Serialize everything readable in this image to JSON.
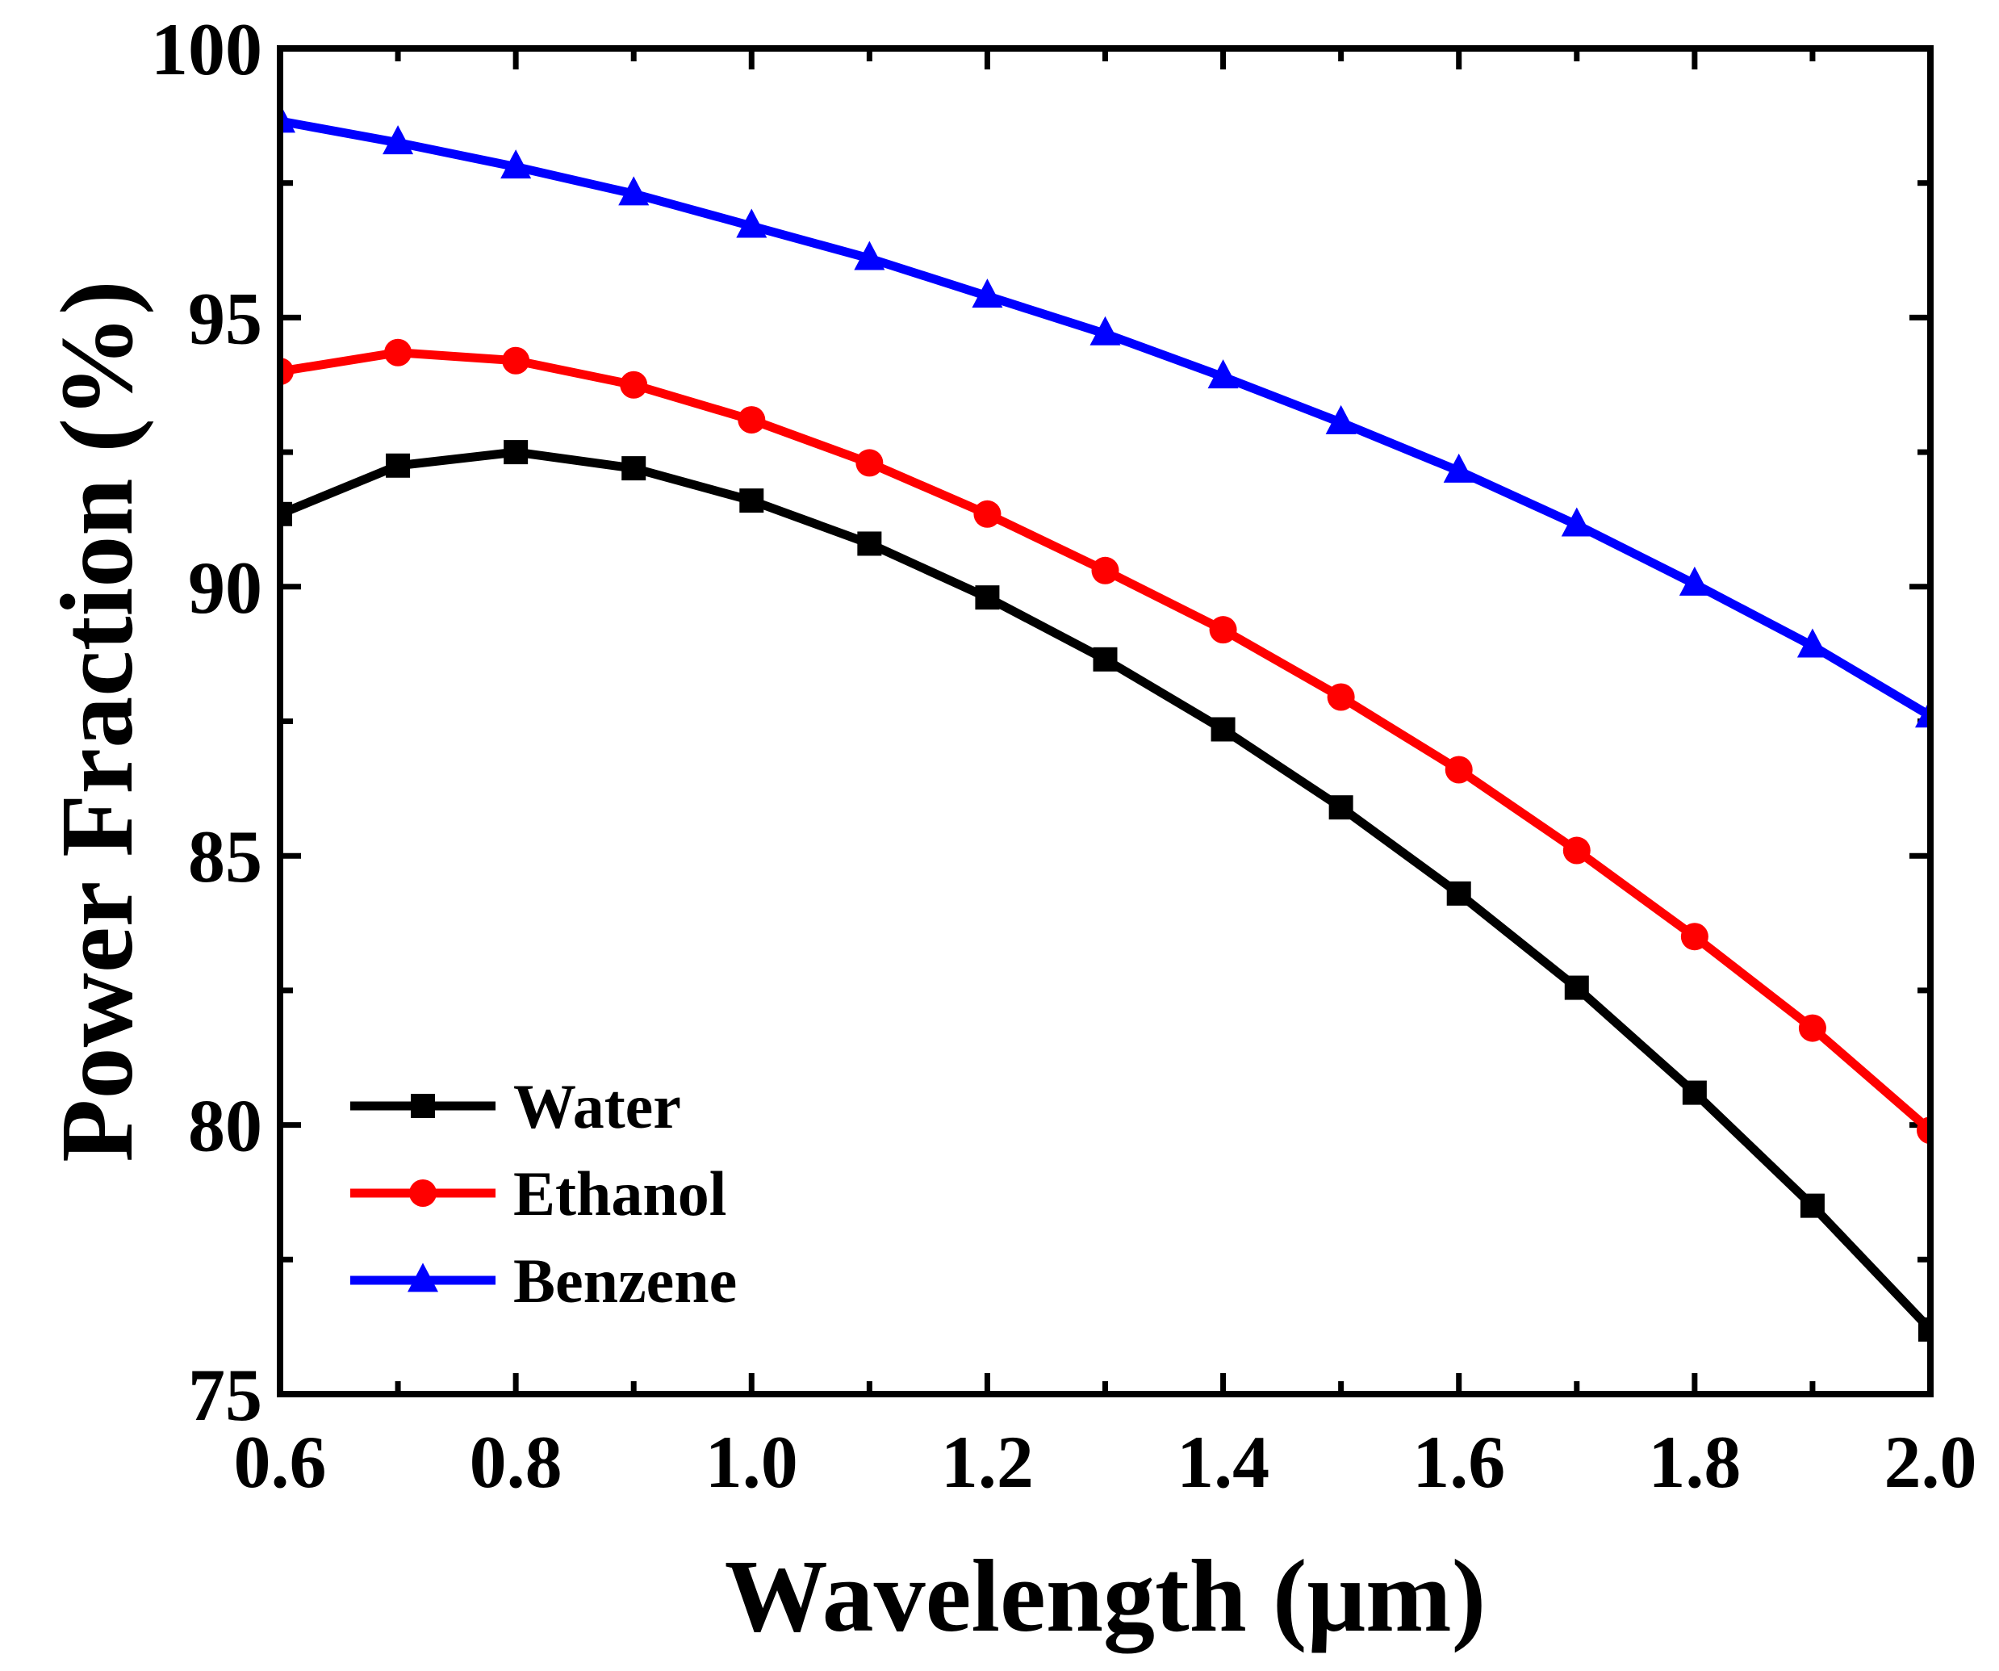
{
  "chart_data": {
    "type": "line",
    "title": "",
    "xlabel": "Wavelength (μm)",
    "ylabel": "Power Fraction (%)",
    "xlim": [
      0.6,
      2.0
    ],
    "ylim": [
      75,
      100
    ],
    "xticks": [
      0.6,
      0.8,
      1.0,
      1.2,
      1.4,
      1.6,
      1.8,
      2.0
    ],
    "xtick_labels": [
      "0.6",
      "0.8",
      "1.0",
      "1.2",
      "1.4",
      "1.6",
      "1.8",
      "2.0"
    ],
    "yticks": [
      75,
      80,
      85,
      90,
      95,
      100
    ],
    "ytick_labels": [
      "75",
      "80",
      "85",
      "90",
      "95",
      "100"
    ],
    "grid": false,
    "legend_position": "bottom-left",
    "x": [
      0.6,
      0.7,
      0.8,
      0.9,
      1.0,
      1.1,
      1.2,
      1.3,
      1.4,
      1.5,
      1.6,
      1.7,
      1.8,
      1.9,
      2.0
    ],
    "series": [
      {
        "name": "Water",
        "color": "#000000",
        "marker": "square",
        "values": [
          91.35,
          92.25,
          92.5,
          92.2,
          91.6,
          90.8,
          89.8,
          88.65,
          87.35,
          85.9,
          84.3,
          82.55,
          80.6,
          78.5,
          76.2
        ]
      },
      {
        "name": "Ethanol",
        "color": "#ff0000",
        "marker": "circle",
        "values": [
          94.0,
          94.35,
          94.2,
          93.75,
          93.1,
          92.3,
          91.35,
          90.3,
          89.2,
          87.95,
          86.6,
          85.1,
          83.5,
          81.8,
          79.9
        ]
      },
      {
        "name": "Benzene",
        "color": "#0000ff",
        "marker": "triangle",
        "values": [
          98.65,
          98.25,
          97.8,
          97.3,
          96.7,
          96.1,
          95.4,
          94.7,
          93.9,
          93.05,
          92.15,
          91.15,
          90.05,
          88.9,
          87.6
        ]
      }
    ]
  }
}
